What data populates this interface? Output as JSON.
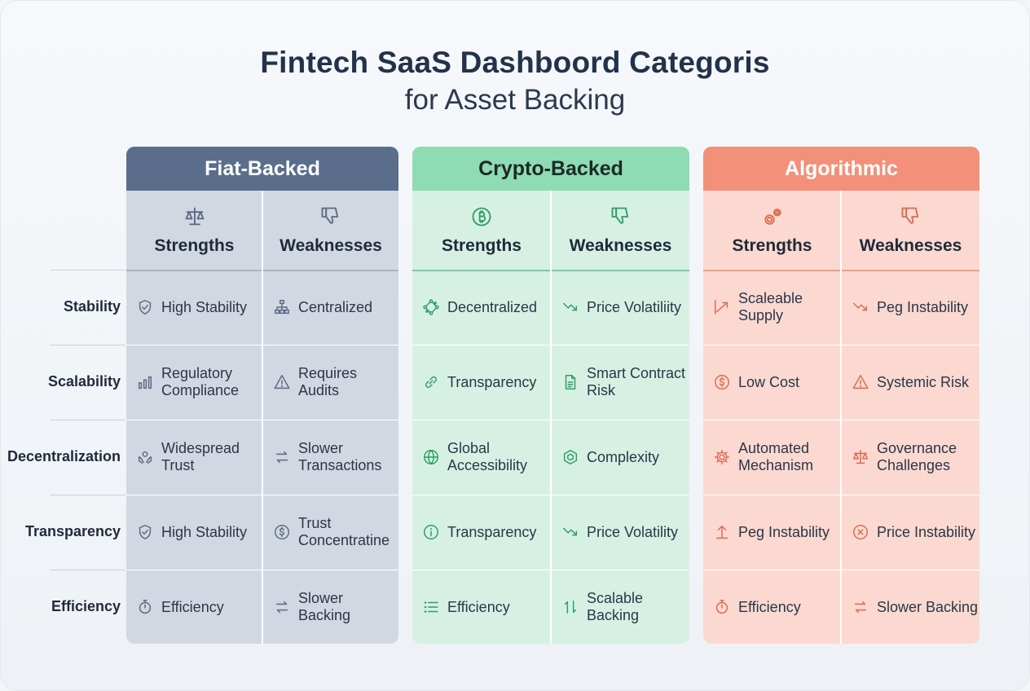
{
  "title": "Fintech SaaS Dashboord Categoris",
  "subtitle": "for Asset Backing",
  "row_labels": [
    "Stability",
    "Scalability",
    "Decentralization",
    "Transparency",
    "Efficiency"
  ],
  "panels": [
    {
      "name": "Fiat-Backed",
      "colors": {
        "header": "#5a6e8c",
        "header_text": "#ffffff",
        "body": "#d2d8e2",
        "line": "#a9b4c6",
        "icon": "#5b6b82"
      },
      "strengths": {
        "label": "Strengths",
        "icon": "scale-icon",
        "cells": [
          {
            "text": "High Stability",
            "icon": "shield-check-icon"
          },
          {
            "text": "Regulatory Compliance",
            "icon": "bar-chart-icon"
          },
          {
            "text": "Widespread Trust",
            "icon": "hands-icon"
          },
          {
            "text": "High Stability",
            "icon": "shield-check-icon"
          },
          {
            "text": "Efficiency",
            "icon": "stopwatch-icon"
          }
        ]
      },
      "weaknesses": {
        "label": "Weaknesses",
        "icon": "thumbs-down-icon",
        "cells": [
          {
            "text": "Centralized",
            "icon": "hierarchy-icon"
          },
          {
            "text": "Requires Audits",
            "icon": "warning-icon"
          },
          {
            "text": "Slower Transactions",
            "icon": "swap-arrows-icon"
          },
          {
            "text": "Trust Concentratine",
            "icon": "dollar-circle-icon"
          },
          {
            "text": "Slower Backing",
            "icon": "swap-arrows-icon"
          }
        ]
      }
    },
    {
      "name": "Crypto-Backed",
      "colors": {
        "header": "#8fdbb4",
        "header_text": "#1b2a24",
        "body": "#d6f1e3",
        "line": "#7ccaa2",
        "icon": "#2e9e68"
      },
      "strengths": {
        "label": "Strengths",
        "icon": "bitcoin-icon",
        "cells": [
          {
            "text": "Decentralized",
            "icon": "network-icon"
          },
          {
            "text": "Transparency",
            "icon": "link-icon"
          },
          {
            "text": "Global Accessibility",
            "icon": "globe-icon"
          },
          {
            "text": "Transparency",
            "icon": "info-icon"
          },
          {
            "text": "Efficiency",
            "icon": "list-icon"
          }
        ]
      },
      "weaknesses": {
        "label": "Weaknesses",
        "icon": "thumbs-down-icon",
        "cells": [
          {
            "text": "Price Volatiliity",
            "icon": "trend-down-icon"
          },
          {
            "text": "Smart Contract Risk",
            "icon": "document-icon"
          },
          {
            "text": "Complexity",
            "icon": "hexagon-icon"
          },
          {
            "text": "Price Volatility",
            "icon": "trend-down-icon"
          },
          {
            "text": "Scalable Backing",
            "icon": "up-down-arrows-icon"
          }
        ]
      }
    },
    {
      "name": "Algorithmic",
      "colors": {
        "header": "#f2907a",
        "header_text": "#ffffff",
        "body": "#fbd9d0",
        "line": "#ee9d89",
        "icon": "#dc6a52"
      },
      "strengths": {
        "label": "Strengths",
        "icon": "gears-icon",
        "cells": [
          {
            "text": "Scaleable Supply",
            "icon": "trend-up-icon"
          },
          {
            "text": "Low Cost",
            "icon": "dollar-circle-icon"
          },
          {
            "text": "Automated Mechanism",
            "icon": "gear-icon"
          },
          {
            "text": "Peg Instability",
            "icon": "arrow-up-icon"
          },
          {
            "text": "Efficiency",
            "icon": "stopwatch-icon"
          }
        ]
      },
      "weaknesses": {
        "label": "Weaknesses",
        "icon": "thumbs-down-icon",
        "cells": [
          {
            "text": "Peg Instability",
            "icon": "trend-down-icon"
          },
          {
            "text": "Systemic Risk",
            "icon": "warning-icon"
          },
          {
            "text": "Governance Challenges",
            "icon": "scale-icon"
          },
          {
            "text": "Price Instability",
            "icon": "x-circle-icon"
          },
          {
            "text": "Slower Backing",
            "icon": "swap-arrows-icon"
          }
        ]
      }
    }
  ]
}
